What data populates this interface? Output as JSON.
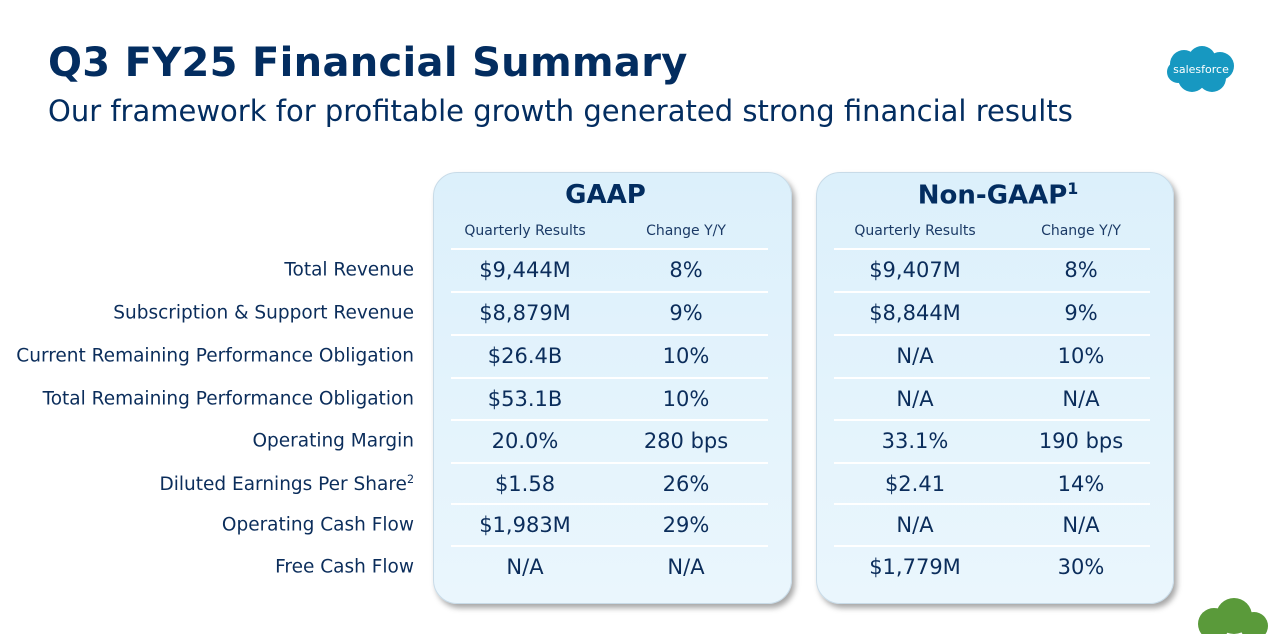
{
  "header": {
    "title": "Q3 FY25 Financial Summary",
    "subtitle": "Our framework for profitable growth generated strong financial results"
  },
  "logo": "salesforce",
  "table": {
    "row_labels": [
      "Total Revenue",
      "Subscription & Support Revenue",
      "Current Remaining Performance Obligation",
      "Total Remaining Performance Obligation",
      "Operating Margin",
      {
        "text": "Diluted Earnings Per Share",
        "note": "2"
      },
      "Operating Cash Flow",
      "Free Cash Flow"
    ],
    "panels": [
      {
        "title": "GAAP",
        "columns": [
          "Quarterly Results",
          "Change Y/Y"
        ],
        "rows": [
          [
            "$9,444M",
            "8%"
          ],
          [
            "$8,879M",
            "9%"
          ],
          [
            "$26.4B",
            "10%"
          ],
          [
            "$53.1B",
            "10%"
          ],
          [
            "20.0%",
            "280 bps"
          ],
          [
            "$1.58",
            "26%"
          ],
          [
            "$1,983M",
            "29%"
          ],
          [
            "N/A",
            "N/A"
          ]
        ]
      },
      {
        "title": "Non-GAAP",
        "note": "1",
        "columns": [
          "Quarterly Results",
          "Change Y/Y"
        ],
        "rows": [
          [
            "$9,407M",
            "8%"
          ],
          [
            "$8,844M",
            "9%"
          ],
          [
            "N/A",
            "10%"
          ],
          [
            "N/A",
            "N/A"
          ],
          [
            "33.1%",
            "190 bps"
          ],
          [
            "$2.41",
            "14%"
          ],
          [
            "N/A",
            "N/A"
          ],
          [
            "$1,779M",
            "30%"
          ]
        ]
      }
    ]
  }
}
